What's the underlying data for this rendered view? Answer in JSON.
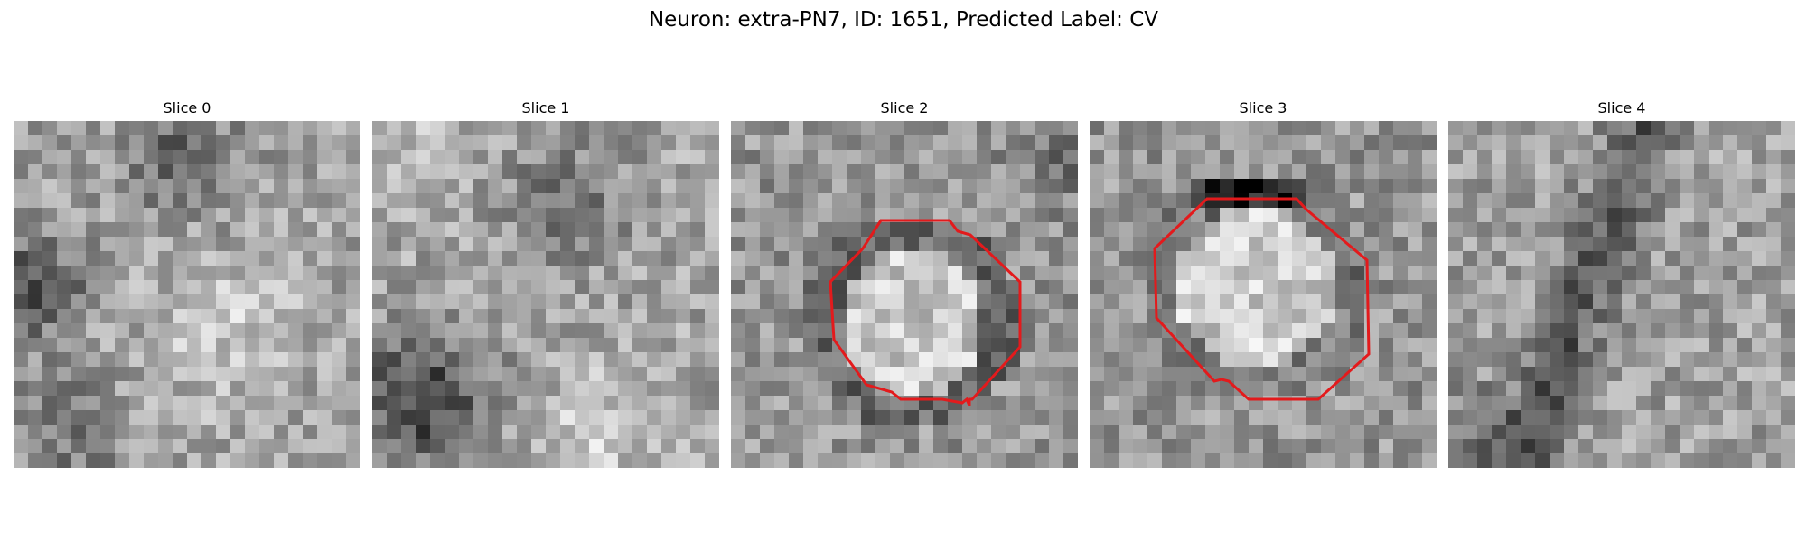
{
  "figure": {
    "title": "Neuron: extra-PN7, ID: 1651, Predicted Label: CV"
  },
  "slices": [
    {
      "title": "Slice 0",
      "texture": "noise-left-dark",
      "contour": false
    },
    {
      "title": "Slice 1",
      "texture": "noise-lower-left-dark",
      "contour": false
    },
    {
      "title": "Slice 2",
      "texture": "noise-bright-center",
      "contour": true
    },
    {
      "title": "Slice 3",
      "texture": "noise-bright-center-large",
      "contour": true
    },
    {
      "title": "Slice 4",
      "texture": "noise-diagonal-dark",
      "contour": false
    }
  ],
  "colors": {
    "contour": "#e31a1c",
    "background": "#ffffff"
  },
  "colormap": "gray"
}
